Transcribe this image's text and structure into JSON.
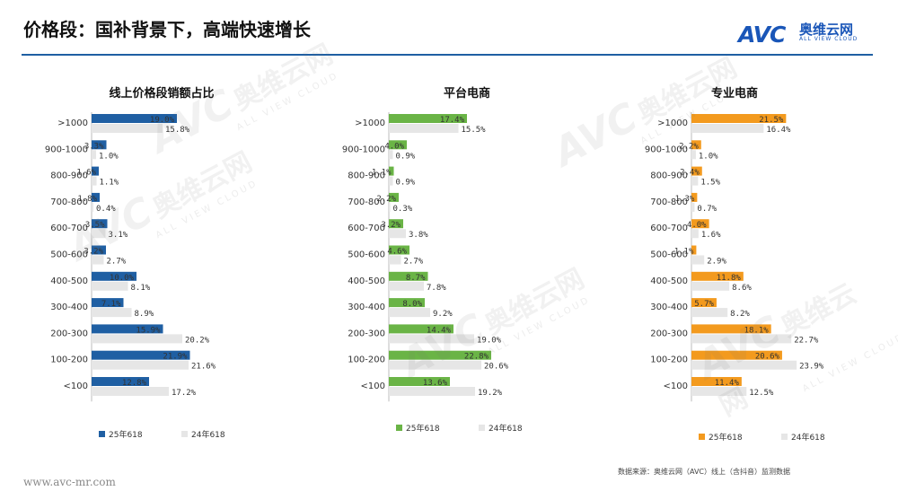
{
  "header": {
    "title": "价格段：国补背景下，高端快速增长",
    "logo_mark": "AVC",
    "logo_cn": "奥维云网",
    "logo_en": "ALL VIEW CLOUD",
    "accent_color": "#1f5fa3"
  },
  "footer": {
    "url": "www.avc-mr.com",
    "source": "数据来源：奥维云网（AVC）线上（含抖音）监测数据"
  },
  "watermark": {
    "mark": "AVC",
    "cn": "奥维云网",
    "en": "ALL VIEW CLOUD"
  },
  "chart_data": [
    {
      "type": "bar",
      "title": "线上价格段销额占比",
      "categories": [
        ">1000",
        "900-1000",
        "800-900",
        "700-800",
        "600-700",
        "500-600",
        "400-500",
        "300-400",
        "200-300",
        "100-200",
        "<100"
      ],
      "series": [
        {
          "name": "25年618",
          "color": "#1f5fa3",
          "values": [
            19.0,
            3.3,
            1.6,
            1.8,
            3.5,
            3.2,
            10.0,
            7.1,
            15.9,
            21.9,
            12.8
          ]
        },
        {
          "name": "24年618",
          "color": "#e6e6e6",
          "values": [
            15.8,
            1.0,
            1.1,
            0.4,
            3.1,
            2.7,
            8.1,
            8.9,
            20.2,
            21.6,
            17.2
          ]
        }
      ],
      "value_suffix": "%"
    },
    {
      "type": "bar",
      "title": "平台电商",
      "categories": [
        ">1000",
        "900-1000",
        "800-900",
        "700-800",
        "600-700",
        "500-600",
        "400-500",
        "300-400",
        "200-300",
        "100-200",
        "<100"
      ],
      "series": [
        {
          "name": "25年618",
          "color": "#6ab446",
          "values": [
            17.4,
            4.0,
            1.1,
            2.2,
            3.2,
            4.6,
            8.7,
            8.0,
            14.4,
            22.8,
            13.6
          ]
        },
        {
          "name": "24年618",
          "color": "#e6e6e6",
          "values": [
            15.5,
            0.9,
            0.9,
            0.3,
            3.8,
            2.7,
            7.8,
            9.2,
            19.0,
            20.6,
            19.2
          ]
        }
      ],
      "value_suffix": "%"
    },
    {
      "type": "bar",
      "title": "专业电商",
      "categories": [
        ">1000",
        "900-1000",
        "800-900",
        "700-800",
        "600-700",
        "500-600",
        "400-500",
        "300-400",
        "200-300",
        "100-200",
        "<100"
      ],
      "series": [
        {
          "name": "25年618",
          "color": "#f39a1e",
          "values": [
            21.5,
            2.2,
            2.4,
            1.3,
            4.0,
            1.1,
            11.8,
            5.7,
            18.1,
            20.6,
            11.4
          ]
        },
        {
          "name": "24年618",
          "color": "#e6e6e6",
          "values": [
            16.4,
            1.0,
            1.5,
            0.7,
            1.6,
            2.9,
            8.6,
            8.2,
            22.7,
            23.9,
            12.5
          ]
        }
      ],
      "value_suffix": "%"
    }
  ]
}
